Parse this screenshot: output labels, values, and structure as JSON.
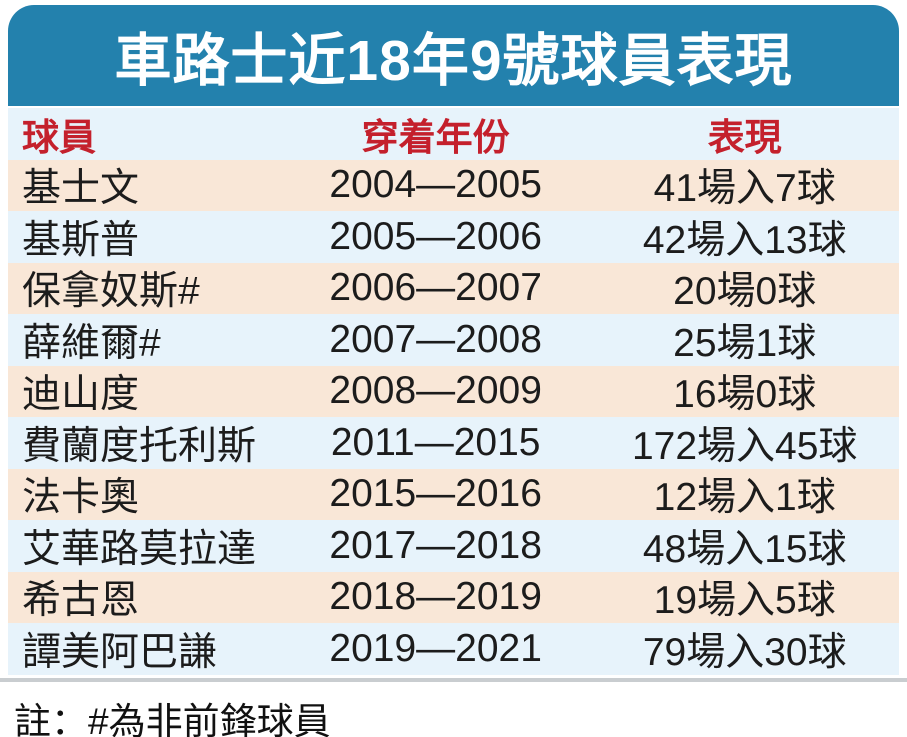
{
  "title": "車路士近18年9號球員表現",
  "colors": {
    "title_bar_bg": "#2381ad",
    "title_text": "#ffffff",
    "header_text_red": "#c4202c",
    "row_peach_bg": "#f9e7d7",
    "row_blue_bg": "#e7f3fb",
    "body_text": "#1c1c1c",
    "divider_gray": "#c9cdd0"
  },
  "table": {
    "headers": [
      "球員",
      "穿着年份",
      "表現"
    ],
    "rows": [
      {
        "player": "基士文",
        "years": "2004—2005",
        "performance": "41場入7球"
      },
      {
        "player": "基斯普",
        "years": "2005—2006",
        "performance": "42場入13球"
      },
      {
        "player": "保拿奴斯#",
        "years": "2006—2007",
        "performance": "20場0球"
      },
      {
        "player": "薛維爾#",
        "years": "2007—2008",
        "performance": "25場1球"
      },
      {
        "player": "迪山度",
        "years": "2008—2009",
        "performance": "16場0球"
      },
      {
        "player": "費蘭度托利斯",
        "years": "2011—2015",
        "performance": "172場入45球"
      },
      {
        "player": "法卡奧",
        "years": "2015—2016",
        "performance": "12場入1球"
      },
      {
        "player": "艾華路莫拉達",
        "years": "2017—2018",
        "performance": "48場入15球"
      },
      {
        "player": "希古恩",
        "years": "2018—2019",
        "performance": "19場入5球"
      },
      {
        "player": "譚美阿巴謙",
        "years": "2019—2021",
        "performance": "79場入30球"
      }
    ]
  },
  "footnote": "註：#為非前鋒球員",
  "chart_data": {
    "type": "table",
    "title": "車路士近18年9號球員表現",
    "columns": [
      "球員",
      "穿着年份",
      "表現"
    ],
    "rows": [
      [
        "基士文",
        "2004—2005",
        "41場入7球"
      ],
      [
        "基斯普",
        "2005—2006",
        "42場入13球"
      ],
      [
        "保拿奴斯#",
        "2006—2007",
        "20場0球"
      ],
      [
        "薛維爾#",
        "2007—2008",
        "25場1球"
      ],
      [
        "迪山度",
        "2008—2009",
        "16場0球"
      ],
      [
        "費蘭度托利斯",
        "2011—2015",
        "172場入45球"
      ],
      [
        "法卡奧",
        "2015—2016",
        "12場入1球"
      ],
      [
        "艾華路莫拉達",
        "2017—2018",
        "48場入15球"
      ],
      [
        "希古恩",
        "2018—2019",
        "19場入5球"
      ],
      [
        "譚美阿巴謙",
        "2019—2021",
        "79場入30球"
      ]
    ],
    "note": "註：#為非前鋒球員",
    "stats": {
      "appearances": [
        41,
        42,
        20,
        25,
        16,
        172,
        12,
        48,
        19,
        79
      ],
      "goals": [
        7,
        13,
        0,
        1,
        0,
        45,
        1,
        15,
        5,
        30
      ]
    }
  }
}
